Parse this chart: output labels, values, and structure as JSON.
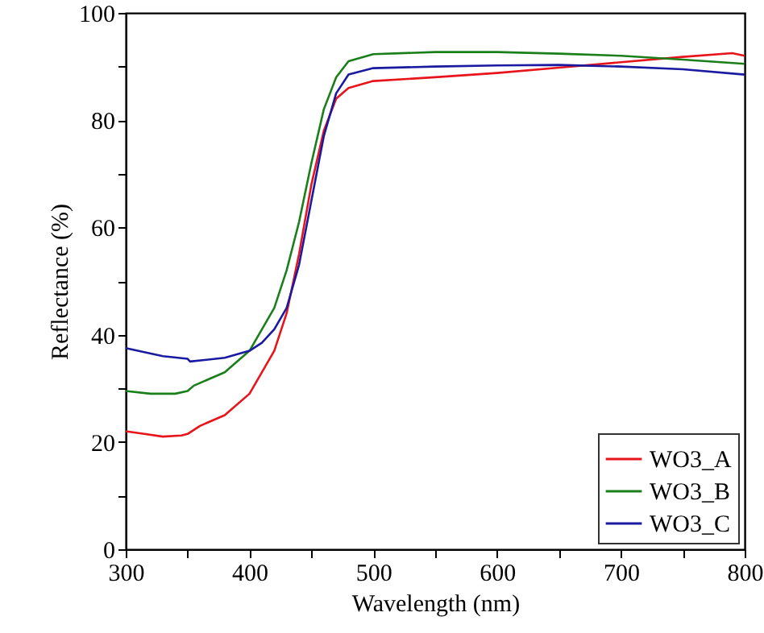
{
  "chart_data": {
    "type": "line",
    "xlabel": "Wavelength (nm)",
    "ylabel": "Reflectance (%)",
    "xlim": [
      300,
      800
    ],
    "ylim": [
      0,
      100
    ],
    "xticks": [
      300,
      {
        "value": 350,
        "label": null
      },
      400,
      {
        "value": 450,
        "label": null
      },
      500,
      {
        "value": 550,
        "label": null
      },
      600,
      {
        "value": 650,
        "label": null
      },
      700,
      {
        "value": 750,
        "label": null
      },
      800
    ],
    "yticks": [
      0,
      {
        "value": 10,
        "label": null
      },
      20,
      {
        "value": 30,
        "label": null
      },
      40,
      {
        "value": 50,
        "label": null
      },
      60,
      {
        "value": 70,
        "label": null
      },
      80,
      {
        "value": 90,
        "label": null
      },
      100
    ],
    "grid": false,
    "legend": "bottom right",
    "marker": "none",
    "line_style": "solid",
    "series": [
      {
        "name": "WO3_A",
        "color": "#e8141c",
        "x": [
          300,
          315,
          330,
          345,
          350,
          360,
          380,
          400,
          420,
          430,
          440,
          450,
          460,
          470,
          480,
          500,
          550,
          600,
          650,
          700,
          750,
          790,
          800
        ],
        "values": [
          22,
          21.5,
          21,
          21.2,
          21.5,
          23,
          25,
          29,
          37,
          44,
          55,
          68,
          78,
          84,
          86,
          87.3,
          88,
          88.8,
          89.8,
          90.8,
          91.8,
          92.5,
          92
        ]
      },
      {
        "name": "WO3_B",
        "color": "#1a7f1a",
        "x": [
          300,
          320,
          340,
          350,
          355,
          380,
          400,
          420,
          430,
          440,
          450,
          460,
          470,
          480,
          500,
          550,
          600,
          650,
          700,
          750,
          800
        ],
        "values": [
          29.5,
          29,
          29,
          29.5,
          30.5,
          33,
          37,
          45,
          52,
          61,
          72,
          82,
          88,
          91,
          92.3,
          92.7,
          92.7,
          92.4,
          92,
          91.3,
          90.5
        ]
      },
      {
        "name": "WO3_C",
        "color": "#1a1aa0",
        "x": [
          300,
          330,
          350,
          352,
          380,
          400,
          410,
          420,
          430,
          440,
          450,
          460,
          470,
          480,
          500,
          550,
          600,
          650,
          700,
          750,
          800
        ],
        "values": [
          37.5,
          36,
          35.5,
          35,
          35.7,
          37,
          38.5,
          41,
          45,
          53,
          65,
          77,
          85,
          88.5,
          89.7,
          90,
          90.2,
          90.3,
          90,
          89.5,
          88.5
        ]
      }
    ]
  }
}
